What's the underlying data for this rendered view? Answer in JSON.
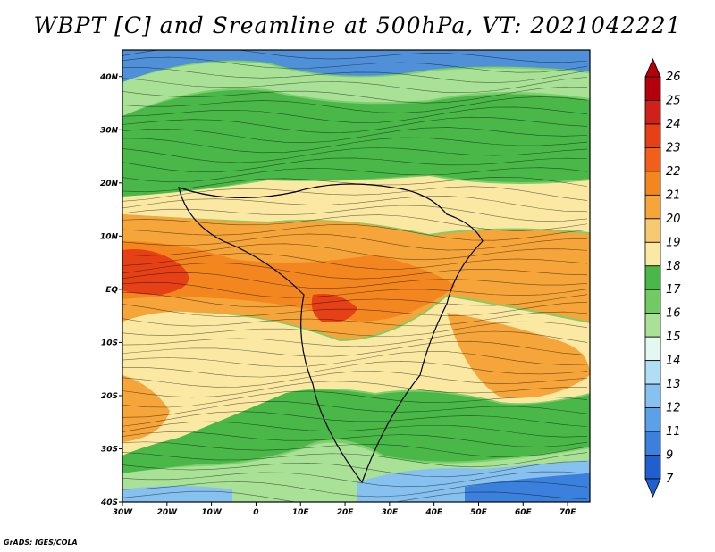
{
  "title": "WBPT [C] and Sreamline at 500hPa, VT: 2021042221",
  "credit": "GrADS: IGES/COLA",
  "map": {
    "lon_labels": [
      "30W",
      "20W",
      "10W",
      "0",
      "10E",
      "20E",
      "30E",
      "40E",
      "50E",
      "60E",
      "70E"
    ],
    "lat_labels": [
      "40N",
      "30N",
      "20N",
      "10N",
      "EQ",
      "10S",
      "20S",
      "30S",
      "40S"
    ],
    "lon_range": [
      -30,
      75
    ],
    "lat_range": [
      -40,
      45
    ]
  },
  "colorbar": {
    "labels": [
      "26",
      "25",
      "24",
      "23",
      "22",
      "21",
      "20",
      "19",
      "18",
      "17",
      "16",
      "15",
      "14",
      "13",
      "12",
      "11",
      "9",
      "7"
    ],
    "colors": [
      "#b3000c",
      "#d0201a",
      "#e54016",
      "#f0601a",
      "#f4861f",
      "#f5a53a",
      "#f7c970",
      "#fbe9a3",
      "#49b848",
      "#72ca63",
      "#a9e196",
      "#e3f8f0",
      "#b0dff5",
      "#86c1ef",
      "#5aa2e8",
      "#3a80dc",
      "#1f5fce"
    ],
    "min_arrow": "#1f5fce",
    "max_arrow": "#b3000c"
  }
}
